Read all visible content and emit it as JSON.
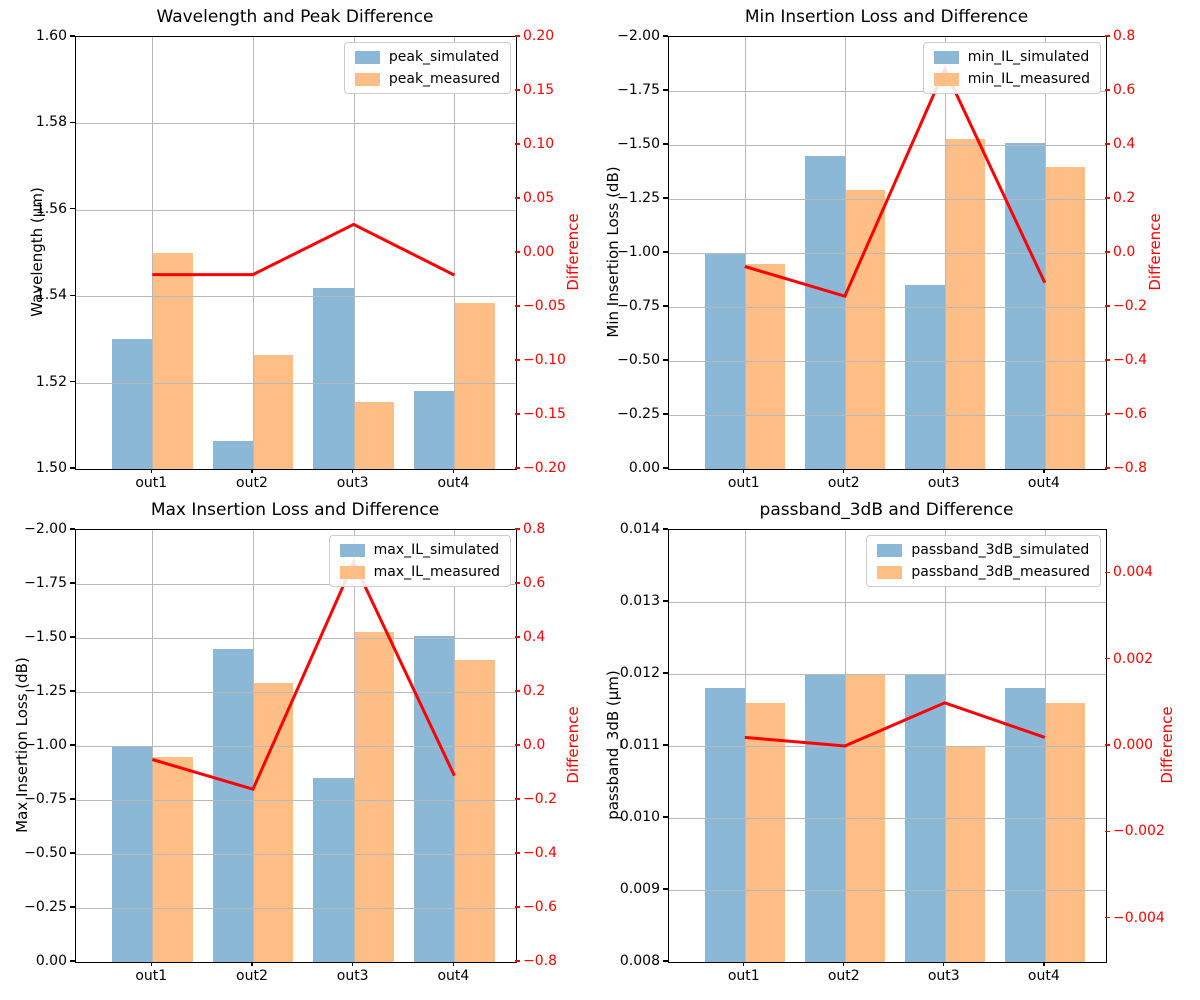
{
  "figure": {
    "background": "#ffffff"
  },
  "colors": {
    "simulated_bar": "#8cb8d8",
    "measured_bar": "#ffbe85",
    "difference_line": "#ff0000",
    "right_axis_text": "#ff0000",
    "grid": "#b9b9b9",
    "spine": "#000000"
  },
  "chart_data": [
    {
      "type": "bar+line",
      "title": "Wavelength and Peak Difference",
      "ylabel_left": "Wavelength (μm)",
      "ylabel_right": "Difference",
      "categories": [
        "out1",
        "out2",
        "out3",
        "out4"
      ],
      "series": [
        {
          "name": "peak_simulated",
          "values": [
            1.53,
            1.5065,
            1.542,
            1.518
          ]
        },
        {
          "name": "peak_measured",
          "values": [
            1.55,
            1.5265,
            1.5155,
            1.5385
          ]
        }
      ],
      "difference": [
        -0.02,
        -0.02,
        0.0265,
        -0.0205
      ],
      "legend": [
        "peak_simulated",
        "peak_measured"
      ],
      "legend_position": "upper right",
      "grid": true,
      "axis_left": {
        "top": 1.6,
        "bottom": 1.5,
        "tick_values": [
          1.5,
          1.52,
          1.54,
          1.56,
          1.58,
          1.6
        ],
        "tick_labels": [
          "1.50",
          "1.52",
          "1.54",
          "1.56",
          "1.58",
          "1.60"
        ]
      },
      "axis_right": {
        "top": 0.2,
        "bottom": -0.2,
        "tick_values": [
          0.2,
          0.15,
          0.1,
          0.05,
          0.0,
          -0.05,
          -0.1,
          -0.15,
          -0.2
        ],
        "tick_labels": [
          "0.20",
          "0.15",
          "0.10",
          "0.05",
          "0.00",
          "−0.05",
          "−0.10",
          "−0.15",
          "−0.20"
        ]
      }
    },
    {
      "type": "bar+line",
      "title": "Min Insertion Loss and Difference",
      "ylabel_left": "Min Insertion Loss (dB)",
      "ylabel_right": "Difference",
      "categories": [
        "out1",
        "out2",
        "out3",
        "out4"
      ],
      "series": [
        {
          "name": "min_IL_simulated",
          "values": [
            -1.0,
            -1.45,
            -0.85,
            -1.51
          ]
        },
        {
          "name": "min_IL_measured",
          "values": [
            -0.95,
            -1.29,
            -1.53,
            -1.4
          ]
        }
      ],
      "difference": [
        -0.05,
        -0.16,
        0.68,
        -0.11
      ],
      "legend": [
        "min_IL_simulated",
        "min_IL_measured"
      ],
      "legend_position": "upper right",
      "grid": true,
      "axis_left": {
        "top": -2.0,
        "bottom": 0.0,
        "tick_values": [
          -2.0,
          -1.75,
          -1.5,
          -1.25,
          -1.0,
          -0.75,
          -0.5,
          -0.25,
          0.0
        ],
        "tick_labels": [
          "−2.00",
          "−1.75",
          "−1.50",
          "−1.25",
          "−1.00",
          "−0.75",
          "−0.50",
          "−0.25",
          "0.00"
        ]
      },
      "axis_right": {
        "top": 0.8,
        "bottom": -0.8,
        "tick_values": [
          0.8,
          0.6,
          0.4,
          0.2,
          0.0,
          -0.2,
          -0.4,
          -0.6,
          -0.8
        ],
        "tick_labels": [
          "0.8",
          "0.6",
          "0.4",
          "0.2",
          "0.0",
          "−0.2",
          "−0.4",
          "−0.6",
          "−0.8"
        ]
      }
    },
    {
      "type": "bar+line",
      "title": "Max Insertion Loss and Difference",
      "ylabel_left": "Max Insertion Loss (dB)",
      "ylabel_right": "Difference",
      "categories": [
        "out1",
        "out2",
        "out3",
        "out4"
      ],
      "series": [
        {
          "name": "max_IL_simulated",
          "values": [
            -1.0,
            -1.45,
            -0.85,
            -1.51
          ]
        },
        {
          "name": "max_IL_measured",
          "values": [
            -0.95,
            -1.29,
            -1.53,
            -1.4
          ]
        }
      ],
      "difference": [
        -0.05,
        -0.16,
        0.68,
        -0.11
      ],
      "legend": [
        "max_IL_simulated",
        "max_IL_measured"
      ],
      "legend_position": "upper right",
      "grid": true,
      "axis_left": {
        "top": -2.0,
        "bottom": 0.0,
        "tick_values": [
          -2.0,
          -1.75,
          -1.5,
          -1.25,
          -1.0,
          -0.75,
          -0.5,
          -0.25,
          0.0
        ],
        "tick_labels": [
          "−2.00",
          "−1.75",
          "−1.50",
          "−1.25",
          "−1.00",
          "−0.75",
          "−0.50",
          "−0.25",
          "0.00"
        ]
      },
      "axis_right": {
        "top": 0.8,
        "bottom": -0.8,
        "tick_values": [
          0.8,
          0.6,
          0.4,
          0.2,
          0.0,
          -0.2,
          -0.4,
          -0.6,
          -0.8
        ],
        "tick_labels": [
          "0.8",
          "0.6",
          "0.4",
          "0.2",
          "0.0",
          "−0.2",
          "−0.4",
          "−0.6",
          "−0.8"
        ]
      }
    },
    {
      "type": "bar+line",
      "title": "passband_3dB and Difference",
      "ylabel_left": "passband_3dB (μm)",
      "ylabel_right": "Difference",
      "categories": [
        "out1",
        "out2",
        "out3",
        "out4"
      ],
      "series": [
        {
          "name": "passband_3dB_simulated",
          "values": [
            0.0118,
            0.012,
            0.012,
            0.0118
          ]
        },
        {
          "name": "passband_3dB_measured",
          "values": [
            0.0116,
            0.012,
            0.011,
            0.0116
          ]
        }
      ],
      "difference": [
        0.0002,
        0.0,
        0.001,
        0.0002
      ],
      "legend": [
        "passband_3dB_simulated",
        "passband_3dB_measured"
      ],
      "legend_position": "upper right",
      "grid": true,
      "axis_left": {
        "top": 0.014,
        "bottom": 0.008,
        "tick_values": [
          0.008,
          0.009,
          0.01,
          0.011,
          0.012,
          0.013,
          0.014
        ],
        "tick_labels": [
          "0.008",
          "0.009",
          "0.010",
          "0.011",
          "0.012",
          "0.013",
          "0.014"
        ]
      },
      "axis_right": {
        "top": 0.005,
        "bottom": -0.005,
        "tick_values": [
          0.004,
          0.002,
          0.0,
          -0.002,
          -0.004
        ],
        "tick_labels": [
          "0.004",
          "0.002",
          "0.000",
          "−0.002",
          "−0.004"
        ]
      }
    }
  ]
}
